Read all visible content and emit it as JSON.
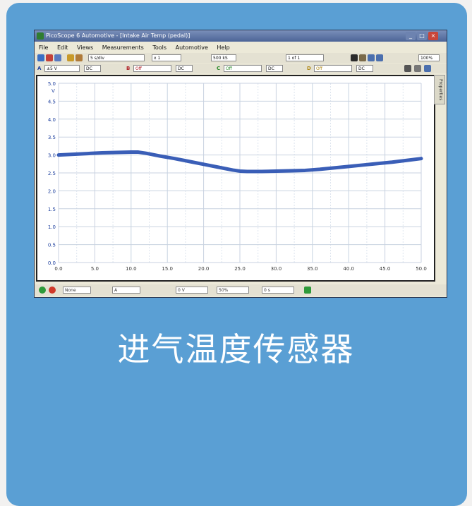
{
  "window": {
    "title": "PicoScope 6 Automotive - [Intake Air Temp (pedal)]",
    "minimize_icon": "minimize-icon",
    "maximize_icon": "maximize-icon",
    "close_icon": "close-icon"
  },
  "menu": [
    "File",
    "Edit",
    "Views",
    "Measurements",
    "Tools",
    "Automotive",
    "Help"
  ],
  "toolbar": {
    "timebase": "5 s/div",
    "zoom": "x 1",
    "samples": "500 kS",
    "page": "1 of 1",
    "zoom_pct": "100%"
  },
  "channels": {
    "a_label": "A",
    "a_range": "±5 V",
    "a_coupling": "DC",
    "b_label": "B",
    "b_range": "Off",
    "b_coupling": "DC",
    "c_label": "C",
    "c_range": "Off",
    "c_coupling": "DC",
    "d_label": "D",
    "d_range": "Off",
    "d_coupling": "DC"
  },
  "properties_tab": "Properties",
  "status": {
    "trigger": "None",
    "channel": "A",
    "level": "0 V",
    "pretrigger": "50%",
    "delay": "0 s"
  },
  "caption": "进气温度传感器",
  "chart_data": {
    "type": "line",
    "ylabel": "V",
    "xlabel": "",
    "xlim": [
      0.0,
      50.0
    ],
    "ylim": [
      0.0,
      5.0
    ],
    "x_ticks": [
      "0.0",
      "5.0",
      "10.0",
      "15.0",
      "20.0",
      "25.0",
      "30.0",
      "35.0",
      "40.0",
      "45.0",
      "50.0"
    ],
    "y_ticks": [
      "0.0",
      "0.5",
      "1.0",
      "1.5",
      "2.0",
      "2.5",
      "3.0",
      "3.5",
      "4.0",
      "4.5",
      "5.0"
    ],
    "grid": true,
    "series": [
      {
        "color": "#2f55b3",
        "x": [
          0,
          2,
          4,
          6,
          8,
          10,
          11,
          12,
          14,
          16,
          18,
          20,
          22,
          24,
          25,
          26,
          28,
          30,
          32,
          34,
          36,
          38,
          40,
          42,
          44,
          46,
          48,
          50
        ],
        "y": [
          3.0,
          3.02,
          3.04,
          3.06,
          3.07,
          3.08,
          3.08,
          3.05,
          2.97,
          2.9,
          2.82,
          2.74,
          2.66,
          2.58,
          2.55,
          2.54,
          2.54,
          2.55,
          2.56,
          2.57,
          2.6,
          2.64,
          2.68,
          2.72,
          2.76,
          2.8,
          2.85,
          2.9
        ]
      }
    ]
  }
}
